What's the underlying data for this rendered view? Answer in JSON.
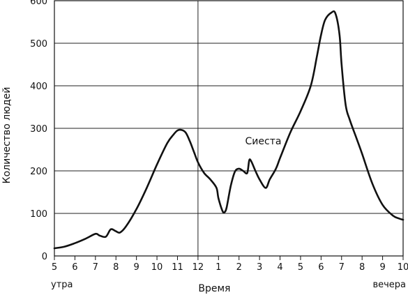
{
  "chart_data": {
    "type": "line",
    "ylabel": "Количество людей",
    "xlabel": "Время",
    "ylim": [
      0,
      600
    ],
    "yticks": [
      0,
      100,
      200,
      300,
      400,
      500,
      600
    ],
    "grid": {
      "horizontal": true,
      "vertical_at": [
        "12"
      ]
    },
    "x_ticks": [
      "5",
      "6",
      "7",
      "8",
      "9",
      "10",
      "11",
      "12",
      "1",
      "2",
      "3",
      "4",
      "5",
      "6",
      "7",
      "8",
      "9",
      "10"
    ],
    "x_range_labels": {
      "start": "утра",
      "end": "вечера"
    },
    "annotation": {
      "text": "Сиеста",
      "at": {
        "x": 14.3,
        "y": 262
      }
    },
    "series": [
      {
        "x": [
          5.0,
          5.5,
          6.0,
          6.5,
          7.0,
          7.2,
          7.5,
          7.7,
          7.8,
          8.0,
          8.2,
          8.5,
          9.0,
          9.5,
          10.0,
          10.5,
          10.8,
          11.0,
          11.2,
          11.4,
          11.6,
          11.8,
          12.0,
          12.3,
          12.6,
          12.9,
          13.0,
          13.2,
          13.3,
          13.4,
          13.6,
          13.8,
          14.0,
          14.2,
          14.4,
          14.5,
          14.6,
          14.8,
          15.0,
          15.3,
          15.5,
          15.8,
          16.0,
          16.5,
          17.0,
          17.5,
          17.8,
          18.0,
          18.2,
          18.5,
          18.7,
          18.9,
          19.0,
          19.2,
          19.4,
          19.7,
          20.0,
          20.5,
          21.0,
          21.5,
          21.8,
          22.0
        ],
        "y": [
          18,
          22,
          30,
          40,
          52,
          48,
          45,
          60,
          63,
          58,
          55,
          70,
          110,
          160,
          215,
          265,
          285,
          295,
          296,
          290,
          270,
          245,
          220,
          195,
          180,
          160,
          135,
          105,
          103,
          115,
          165,
          198,
          205,
          200,
          195,
          225,
          222,
          200,
          180,
          160,
          180,
          205,
          230,
          290,
          340,
          400,
          470,
          520,
          555,
          572,
          570,
          520,
          450,
          355,
          320,
          280,
          240,
          170,
          120,
          95,
          88,
          85
        ]
      }
    ]
  }
}
